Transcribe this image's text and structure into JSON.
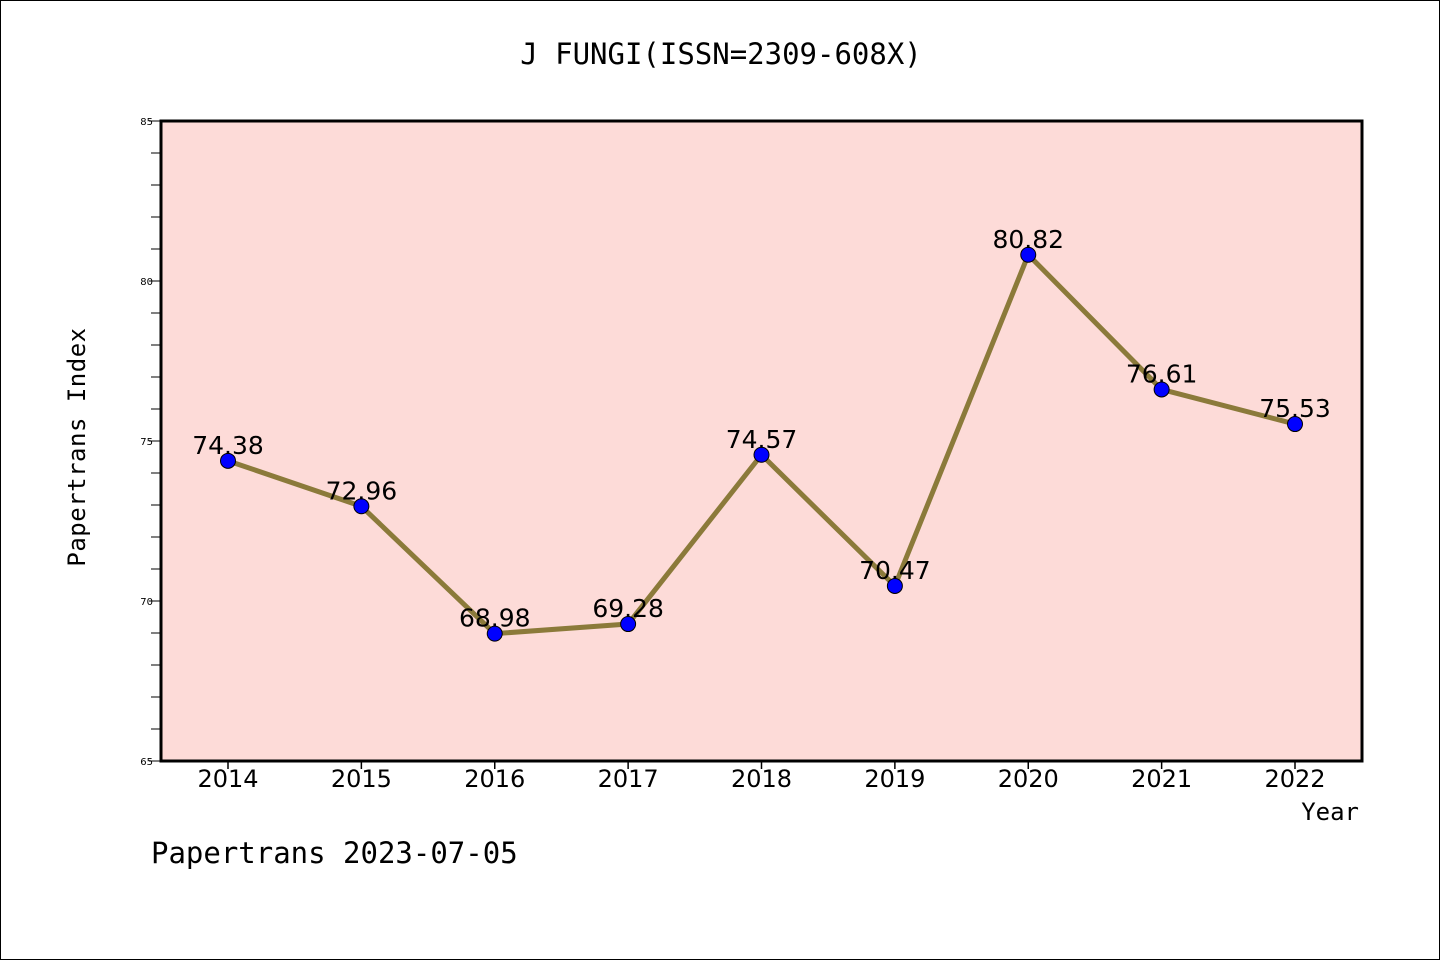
{
  "title": "J FUNGI(ISSN=2309-608X)",
  "footer": "Papertrans 2023-07-05",
  "colors": {
    "plot_background": "#fddbd8",
    "line": "#8b7a3a",
    "marker": "#0000ff"
  },
  "chart_data": {
    "type": "line",
    "title": "J FUNGI(ISSN=2309-608X)",
    "xlabel": "Year",
    "ylabel": "Papertrans Index",
    "categories": [
      "2014",
      "2015",
      "2016",
      "2017",
      "2018",
      "2019",
      "2020",
      "2021",
      "2022"
    ],
    "values": [
      74.38,
      72.96,
      68.98,
      69.28,
      74.57,
      70.47,
      80.82,
      76.61,
      75.53
    ],
    "data_labels": [
      "74.38",
      "72.96",
      "68.98",
      "69.28",
      "74.57",
      "70.47",
      "80.82",
      "76.61",
      "75.53"
    ],
    "ylim": [
      65,
      85
    ],
    "yticks": [
      "65",
      "70",
      "75",
      "80",
      "85"
    ],
    "grid": false,
    "legend": "none"
  }
}
